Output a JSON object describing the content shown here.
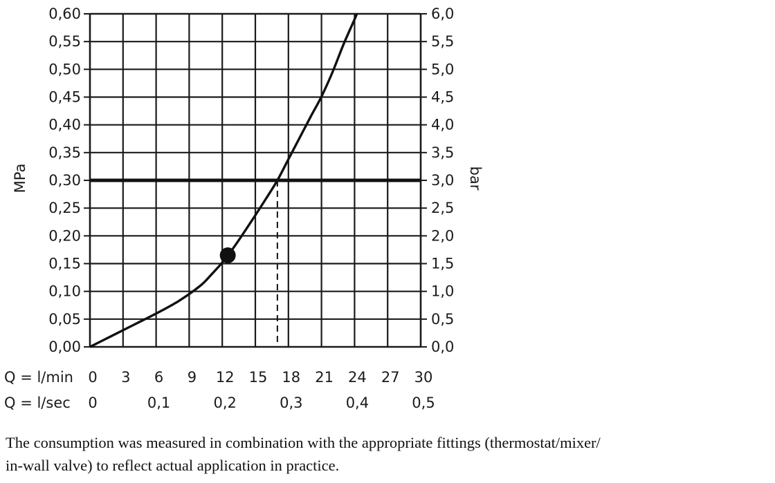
{
  "chart_data": {
    "type": "line",
    "left_axis_label": "MPa",
    "right_axis_label": "bar",
    "x_rows": [
      {
        "label": "Q = l/min",
        "ticks": [
          "0",
          "3",
          "6",
          "9",
          "12",
          "15",
          "18",
          "21",
          "24",
          "27",
          "30"
        ]
      },
      {
        "label": "Q = l/sec",
        "ticks": [
          "0",
          "0,1",
          "0,2",
          "0,3",
          "0,4",
          "0,5"
        ]
      }
    ],
    "y_ticks_mpa": [
      "0,00",
      "0,05",
      "0,10",
      "0,15",
      "0,20",
      "0,25",
      "0,30",
      "0,35",
      "0,40",
      "0,45",
      "0,50",
      "0,55",
      "0,60"
    ],
    "y_ticks_bar": [
      "0,0",
      "0,5",
      "1,0",
      "1,5",
      "2,0",
      "2,5",
      "3,0",
      "3,5",
      "4,0",
      "4,5",
      "5,0",
      "5,5",
      "6,0"
    ],
    "xlim": [
      0,
      30
    ],
    "ylim": [
      0,
      0.6
    ],
    "grid": true,
    "series": [
      {
        "x": [
          0,
          2,
          4,
          6,
          8,
          10,
          11,
          12,
          13,
          14,
          15,
          16,
          17,
          18,
          19,
          20,
          21,
          22,
          23,
          24,
          24.2
        ],
        "y": [
          0,
          0.02,
          0.04,
          0.06,
          0.082,
          0.11,
          0.13,
          0.152,
          0.178,
          0.207,
          0.237,
          0.268,
          0.3,
          0.338,
          0.376,
          0.414,
          0.451,
          0.495,
          0.545,
          0.59,
          0.6
        ]
      }
    ],
    "marker_point": {
      "x": 12.5,
      "y": 0.165
    },
    "reference_line": {
      "y": 0.3
    },
    "reference_drop": {
      "x": 17
    }
  },
  "caption": {
    "line1": "The consumption was measured in combination with the appropriate fittings (thermostat/mixer/",
    "line2": "in-wall valve) to reflect actual application in practice."
  }
}
